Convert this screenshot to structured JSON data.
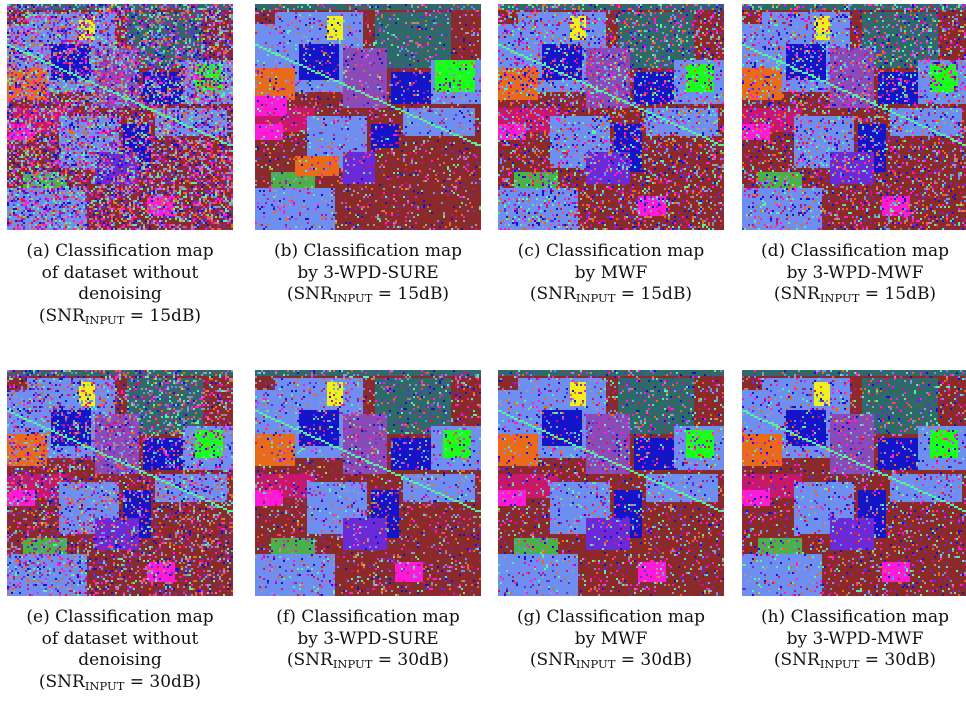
{
  "figure": {
    "panels": [
      {
        "id": "a",
        "caption_lines": [
          "(a) Classification map",
          "of dataset without",
          "denoising"
        ],
        "snr": {
          "prefix": "(SNR",
          "sub": "INPUT",
          "suffix": " = 15dB)"
        },
        "map_style": "noisy",
        "seed": 11
      },
      {
        "id": "b",
        "caption_lines": [
          "(b) Classification map",
          "by 3-WPD-SURE"
        ],
        "snr": {
          "prefix": "(SNR",
          "sub": "INPUT",
          "suffix": " = 15dB)"
        },
        "map_style": "smooth",
        "seed": 23
      },
      {
        "id": "c",
        "caption_lines": [
          "(c) Classification map",
          "by MWF"
        ],
        "snr": {
          "prefix": "(SNR",
          "sub": "INPUT",
          "suffix": " = 15dB)"
        },
        "map_style": "medium",
        "seed": 37
      },
      {
        "id": "d",
        "caption_lines": [
          "(d) Classification map",
          "by 3-WPD-MWF"
        ],
        "snr": {
          "prefix": "(SNR",
          "sub": "INPUT",
          "suffix": " = 15dB)"
        },
        "map_style": "medium",
        "seed": 41
      },
      {
        "id": "e",
        "caption_lines": [
          "(e) Classification map",
          "of dataset without",
          "denoising"
        ],
        "snr": {
          "prefix": "(SNR",
          "sub": "INPUT",
          "suffix": " = 30dB)"
        },
        "map_style": "semi",
        "seed": 53
      },
      {
        "id": "f",
        "caption_lines": [
          "(f) Classification map",
          "by 3-WPD-SURE"
        ],
        "snr": {
          "prefix": "(SNR",
          "sub": "INPUT",
          "suffix": " = 30dB)"
        },
        "map_style": "clean",
        "seed": 67
      },
      {
        "id": "g",
        "caption_lines": [
          "(g) Classification map",
          "by MWF"
        ],
        "snr": {
          "prefix": "(SNR",
          "sub": "INPUT",
          "suffix": " = 30dB)"
        },
        "map_style": "clean",
        "seed": 71
      },
      {
        "id": "h",
        "caption_lines": [
          "(h) Classification map",
          "by 3-WPD-MWF"
        ],
        "snr": {
          "prefix": "(SNR",
          "sub": "INPUT",
          "suffix": " = 30dB)"
        },
        "map_style": "clean",
        "seed": 83
      }
    ],
    "class_colors": {
      "background": "#8a2a2a",
      "field_blue": "#6f8ff0",
      "field_navy": "#1414c8",
      "field_violet": "#6a2ad8",
      "field_purple": "#8a4ab8",
      "orange": "#e86a1a",
      "green": "#1aff1a",
      "mint": "#5af0a0",
      "magenta": "#ff1ad8",
      "crimson": "#c8186a",
      "yellow": "#f0f01a",
      "teal": "#2e6a6a",
      "olive": "#4ab04a",
      "grey": "#9a9ab0"
    }
  }
}
